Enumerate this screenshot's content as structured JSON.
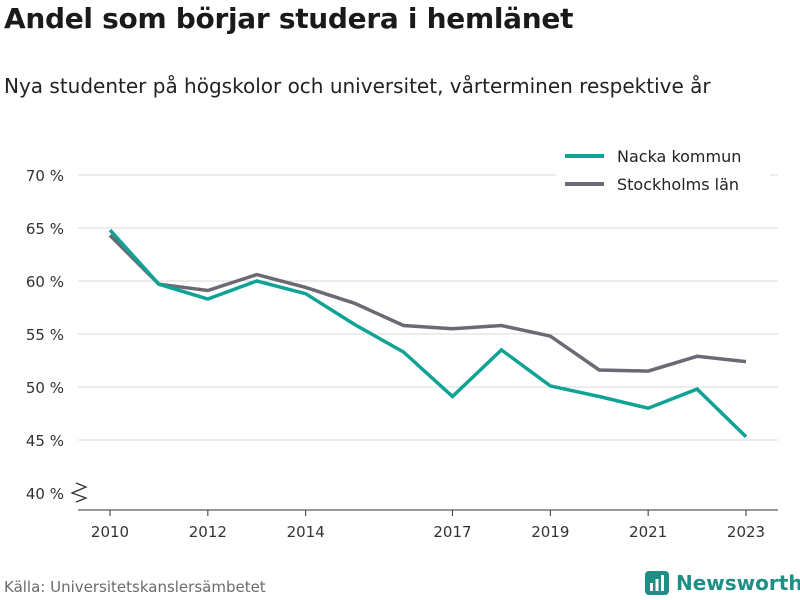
{
  "header": {
    "title": "Andel som börjar studera i hemlänet",
    "subtitle": "Nya studenter på högskolor och universitet, vårterminen respektive år"
  },
  "footer": {
    "source": "Källa: Universitetskanslersämbetet",
    "brand": "Newsworthy"
  },
  "colors": {
    "nacka": "#0fa396",
    "stockholm": "#6b6a73",
    "grid": "#d9d9d9",
    "brand": "#1f8f86"
  },
  "chart_data": {
    "type": "line",
    "x": [
      2010,
      2011,
      2012,
      2013,
      2014,
      2015,
      2016,
      2017,
      2018,
      2019,
      2020,
      2021,
      2022,
      2023
    ],
    "xticks": [
      "2010",
      "2012",
      "2014",
      "2017",
      "2019",
      "2021",
      "2023"
    ],
    "xtick_values": [
      2010,
      2012,
      2014,
      2017,
      2019,
      2021,
      2023
    ],
    "yticks": [
      "40 %",
      "45 %",
      "50 %",
      "55 %",
      "60 %",
      "65 %",
      "70 %"
    ],
    "ytick_values": [
      40,
      45,
      50,
      55,
      60,
      65,
      70
    ],
    "ylim": [
      40,
      70
    ],
    "xlim": [
      2010,
      2023
    ],
    "y_axis_break": true,
    "grid": true,
    "legend_position": "top-right",
    "series": [
      {
        "name": "Nacka kommun",
        "color": "#0fa396",
        "values": [
          64.8,
          59.7,
          58.3,
          60.0,
          58.8,
          55.9,
          53.3,
          49.1,
          53.5,
          50.1,
          49.1,
          48.0,
          49.8,
          45.3
        ]
      },
      {
        "name": "Stockholms län",
        "color": "#6b6a73",
        "values": [
          64.3,
          59.7,
          59.1,
          60.6,
          59.4,
          57.9,
          55.8,
          55.5,
          55.8,
          54.8,
          51.6,
          51.5,
          52.9,
          52.4
        ]
      }
    ]
  }
}
